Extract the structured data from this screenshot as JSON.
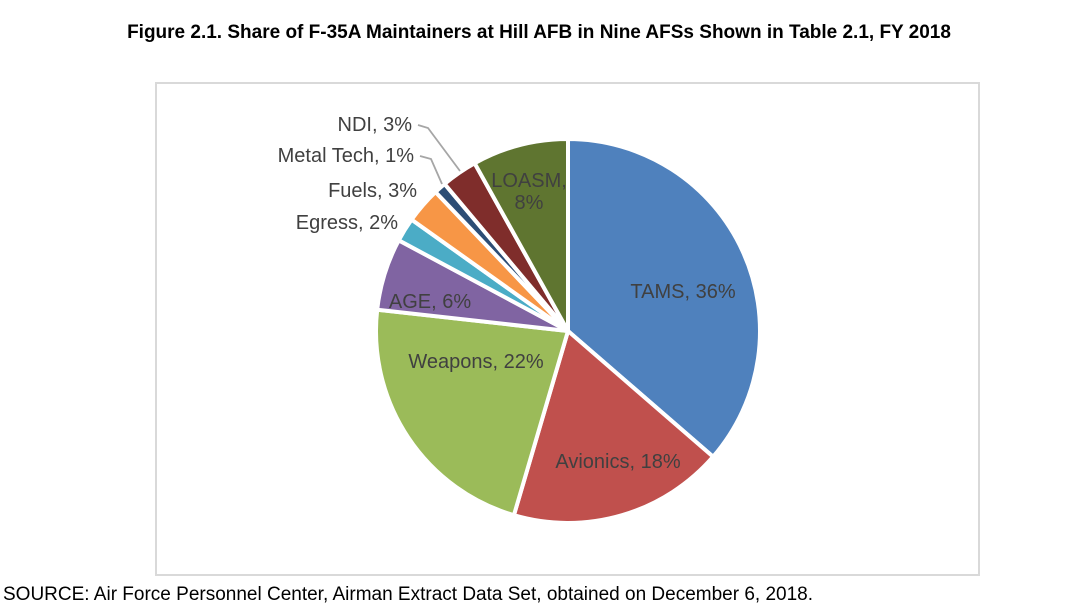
{
  "page": {
    "title": "Figure 2.1. Share of F-35A Maintainers at Hill AFB in Nine AFSs Shown in Table 2.1, FY 2018",
    "source": "SOURCE: Air Force Personnel Center, Airman Extract Data Set, obtained on December 6, 2018."
  },
  "chart_data": {
    "type": "pie",
    "title": "Figure 2.1. Share of F-35A Maintainers at Hill AFB in Nine AFSs Shown in Table 2.1, FY 2018",
    "units": "percent of F-35A maintainers",
    "start_angle_deg": 0,
    "direction": "clockwise",
    "legend": "none",
    "data_label_format": "name, value%",
    "slices": [
      {
        "name": "TAMS",
        "value": 36,
        "label": "TAMS, 36%",
        "color": "#4F81BD",
        "label_placement": "inside"
      },
      {
        "name": "Avionics",
        "value": 18,
        "label": "Avionics, 18%",
        "color": "#C0504D",
        "label_placement": "inside"
      },
      {
        "name": "Weapons",
        "value": 22,
        "label": "Weapons, 22%",
        "color": "#9BBB59",
        "label_placement": "inside"
      },
      {
        "name": "AGE",
        "value": 6,
        "label": "AGE, 6%",
        "color": "#8064A2",
        "label_placement": "inside"
      },
      {
        "name": "Egress",
        "value": 2,
        "label": "Egress, 2%",
        "color": "#4BACC6",
        "label_placement": "outside"
      },
      {
        "name": "Fuels",
        "value": 3,
        "label": "Fuels, 3%",
        "color": "#F79646",
        "label_placement": "outside"
      },
      {
        "name": "Metal Tech",
        "value": 1,
        "label": "Metal Tech, 1%",
        "color": "#2C4D75",
        "label_placement": "outside-leader"
      },
      {
        "name": "NDI",
        "value": 3,
        "label": "NDI, 3%",
        "color": "#7F2D2B",
        "label_placement": "outside-leader"
      },
      {
        "name": "LOASM",
        "value": 8,
        "label": "LOASM, 8%",
        "color": "#5F7530",
        "label_placement": "inside-two-line"
      }
    ],
    "label_color": "#404040",
    "slice_border_color": "#FFFFFF",
    "leader_line_color": "#A6A6A6",
    "frame_border_color": "#D9D9D9"
  }
}
